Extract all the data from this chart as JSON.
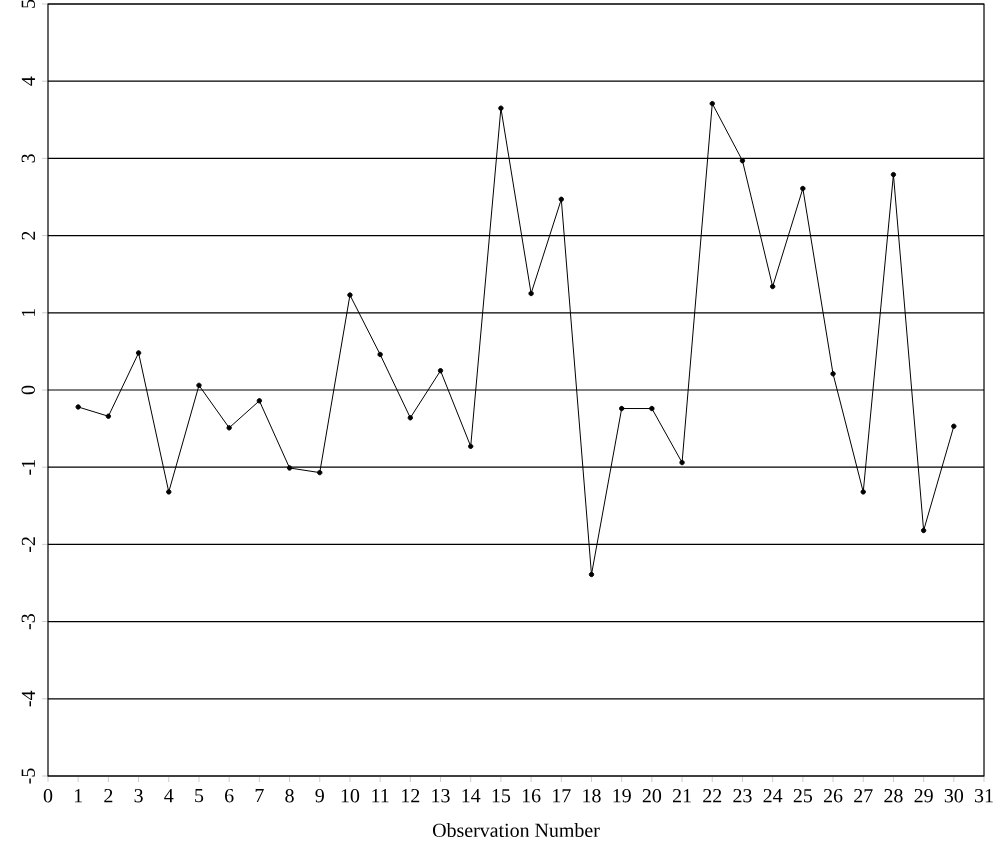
{
  "chart_data": {
    "type": "line",
    "xlabel": "Observation Number",
    "x": [
      1,
      2,
      3,
      4,
      5,
      6,
      7,
      8,
      9,
      10,
      11,
      12,
      13,
      14,
      15,
      16,
      17,
      18,
      19,
      20,
      21,
      22,
      23,
      24,
      25,
      26,
      27,
      28,
      29,
      30
    ],
    "values": [
      -0.22,
      -0.34,
      0.48,
      -1.32,
      0.06,
      -0.49,
      -0.14,
      -1.01,
      -1.07,
      1.23,
      0.46,
      -0.36,
      0.25,
      -0.73,
      3.65,
      1.25,
      2.47,
      -2.39,
      -0.24,
      -0.24,
      -0.94,
      3.71,
      2.97,
      1.34,
      2.61,
      0.21,
      -1.32,
      2.79,
      -1.82,
      -0.47
    ],
    "color": "#000000",
    "marker": "circle",
    "line_style": "solid",
    "grid": "y",
    "xlim": [
      0,
      31
    ],
    "xticks": [
      0,
      1,
      2,
      3,
      4,
      5,
      6,
      7,
      8,
      9,
      10,
      11,
      12,
      13,
      14,
      15,
      16,
      17,
      18,
      19,
      20,
      21,
      22,
      23,
      24,
      25,
      26,
      27,
      28,
      29,
      30,
      31
    ],
    "ylim": [
      -5,
      5
    ],
    "yticks": [
      -5,
      -4,
      -3,
      -2,
      -1,
      0,
      1,
      2,
      3,
      4,
      5
    ]
  }
}
